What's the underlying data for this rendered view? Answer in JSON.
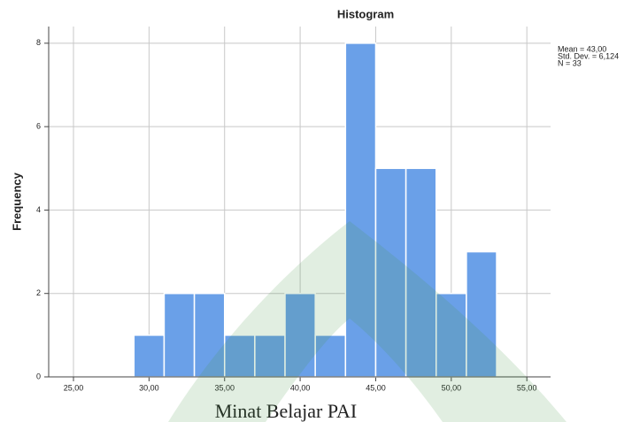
{
  "chart_data": {
    "type": "histogram",
    "title": "Histogram",
    "x_label": "Minat Belajar PAI",
    "y_label": "Frequency",
    "annotations": [
      "Mean = 43,00",
      "Std. Dev. = 6,124",
      "N = 33"
    ],
    "bins": [
      29,
      31,
      33,
      35,
      37,
      39,
      41,
      43,
      45,
      47,
      49,
      51,
      53
    ],
    "counts": [
      1,
      2,
      2,
      1,
      1,
      2,
      1,
      8,
      5,
      5,
      2,
      3
    ],
    "color": "#6aa0e8",
    "xlim": [
      23.36,
      56.57
    ],
    "xticks": [
      {
        "value": 25,
        "label": "25,00"
      },
      {
        "value": 30,
        "label": "30,00"
      },
      {
        "value": 35,
        "label": "35,00"
      },
      {
        "value": 40,
        "label": "40,00"
      },
      {
        "value": 45,
        "label": "45,00"
      },
      {
        "value": 50,
        "label": "50,00"
      },
      {
        "value": 55,
        "label": "55,00"
      }
    ],
    "ylim": [
      0,
      8.4
    ],
    "yticks": [
      0,
      2,
      4,
      6,
      8
    ],
    "grid": true
  }
}
